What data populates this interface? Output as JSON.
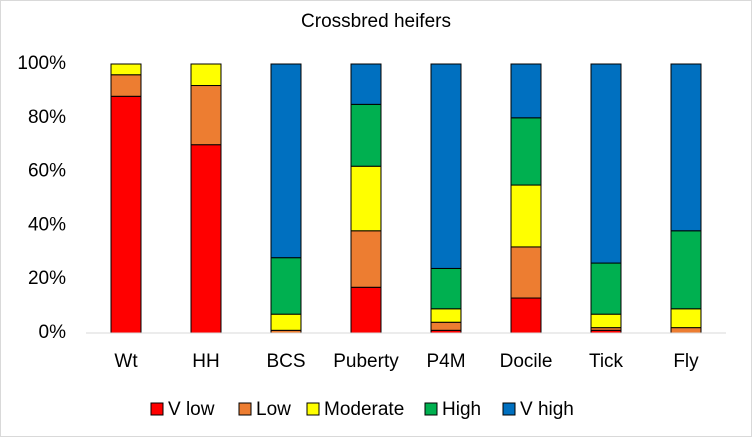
{
  "chart_data": {
    "type": "stacked_bar",
    "title": "Crossbred heifers",
    "categories": [
      "Wt",
      "HH",
      "BCS",
      "Puberty",
      "P4M",
      "Docile",
      "Tick",
      "Fly"
    ],
    "series": [
      {
        "name": "V low",
        "color": "#ff0000",
        "values": [
          88,
          70,
          0,
          17,
          1,
          13,
          1,
          0
        ]
      },
      {
        "name": "Low",
        "color": "#ed7d31",
        "values": [
          8,
          22,
          1,
          21,
          3,
          19,
          1,
          2
        ]
      },
      {
        "name": "Moderate",
        "color": "#ffff00",
        "values": [
          4,
          8,
          6,
          24,
          5,
          23,
          5,
          7
        ]
      },
      {
        "name": "High",
        "color": "#00b050",
        "values": [
          0,
          0,
          21,
          23,
          15,
          25,
          19,
          29
        ]
      },
      {
        "name": "V high",
        "color": "#0070c0",
        "values": [
          0,
          0,
          72,
          15,
          76,
          20,
          74,
          62
        ]
      }
    ],
    "ylim": [
      0,
      100
    ],
    "yticks": [
      {
        "value": 0,
        "label": "0%"
      },
      {
        "value": 20,
        "label": "20%"
      },
      {
        "value": 40,
        "label": "40%"
      },
      {
        "value": 60,
        "label": "60%"
      },
      {
        "value": 80,
        "label": "80%"
      },
      {
        "value": 100,
        "label": "100%"
      }
    ],
    "grid": false,
    "legend": "bottom"
  }
}
